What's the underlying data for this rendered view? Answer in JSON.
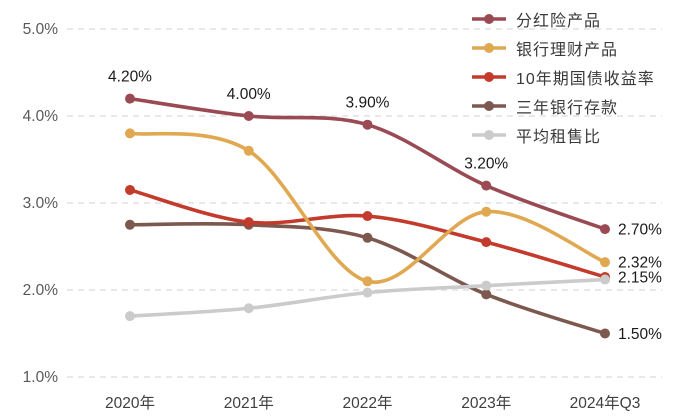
{
  "chart_data": {
    "type": "line",
    "title": "",
    "xlabel": "",
    "ylabel": "",
    "x_categories": [
      "2020年",
      "2021年",
      "2022年",
      "2023年",
      "2024年Q3"
    ],
    "y_tick_labels": [
      "5.0%",
      "4.0%",
      "3.0%",
      "2.0%",
      "1.0%"
    ],
    "y_tick_values": [
      5.0,
      4.0,
      3.0,
      2.0,
      1.0
    ],
    "ylim": [
      1.0,
      5.0
    ],
    "grid": "horizontal-dashed",
    "gridline_color": "#d9d9d9",
    "axis_label_color": "#595959",
    "x_label_color": "#3f3f3f",
    "data_label_color": "#1a1a1a",
    "legend_position": "top-right",
    "series": [
      {
        "name": "分红险产品",
        "color": "#9a4a52",
        "values": [
          4.2,
          4.0,
          3.9,
          3.2,
          2.7
        ],
        "point_labels": [
          "4.20%",
          "4.00%",
          "3.90%",
          "3.20%",
          "2.70%"
        ]
      },
      {
        "name": "银行理财产品",
        "color": "#e0a851",
        "values": [
          3.8,
          3.6,
          2.1,
          2.9,
          2.32
        ],
        "end_label": "2.32%"
      },
      {
        "name": "10年期国债收益率",
        "color": "#c23b2c",
        "values": [
          3.15,
          2.78,
          2.85,
          2.55,
          2.15
        ],
        "end_label": "2.15%"
      },
      {
        "name": "三年银行存款",
        "color": "#7c584f",
        "values": [
          2.75,
          2.75,
          2.6,
          1.95,
          1.5
        ],
        "end_label": "1.50%"
      },
      {
        "name": "平均租售比",
        "color": "#cbcbcb",
        "values": [
          1.7,
          1.79,
          1.97,
          2.05,
          2.12
        ]
      }
    ]
  }
}
